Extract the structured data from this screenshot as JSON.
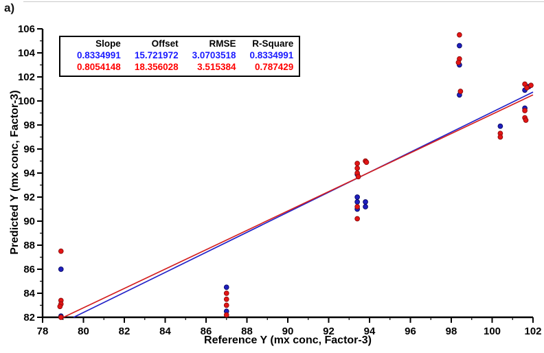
{
  "figure_label": "a)",
  "chart_data": {
    "type": "scatter",
    "title": "",
    "xlabel": "Reference Y (mx conc, Factor-3)",
    "ylabel": "Predicted Y (mx conc, Factor-3)",
    "xlim": [
      78,
      102
    ],
    "ylim": [
      82,
      106
    ],
    "xticks": [
      78,
      80,
      82,
      84,
      86,
      88,
      90,
      92,
      94,
      96,
      98,
      100,
      102
    ],
    "yticks": [
      82,
      84,
      86,
      88,
      90,
      92,
      94,
      96,
      98,
      100,
      102,
      104,
      106
    ],
    "grid": false,
    "legend_position": "top-left",
    "legend_table": {
      "headers": [
        "Slope",
        "Offset",
        "RMSE",
        "R-Square"
      ],
      "rows": [
        {
          "name": "blue-series",
          "color": "#1a1aff",
          "values": [
            "0.8334991",
            "15.721972",
            "3.0703518",
            "0.8334991"
          ]
        },
        {
          "name": "red-series",
          "color": "#ff0000",
          "values": [
            "0.8054148",
            "18.356028",
            "3.515384",
            "0.787429"
          ]
        }
      ]
    },
    "series": [
      {
        "name": "blue-series",
        "color": "#1f1fbe",
        "stroke": "#060660",
        "line_color": "#2323c8",
        "fit": {
          "slope": 0.8334991,
          "offset": 15.721972
        },
        "points": [
          [
            78.9,
            86.0
          ],
          [
            78.9,
            82.1
          ],
          [
            87.0,
            84.5
          ],
          [
            87.0,
            82.5
          ],
          [
            93.4,
            93.9
          ],
          [
            93.4,
            92.0
          ],
          [
            93.4,
            91.6
          ],
          [
            93.4,
            91.0
          ],
          [
            93.8,
            91.6
          ],
          [
            93.8,
            91.2
          ],
          [
            98.4,
            104.6
          ],
          [
            98.4,
            103.0
          ],
          [
            98.4,
            100.5
          ],
          [
            100.4,
            97.9
          ],
          [
            101.6,
            100.9
          ],
          [
            101.6,
            99.4
          ],
          [
            101.8,
            101.2
          ]
        ]
      },
      {
        "name": "red-series",
        "color": "#e31515",
        "stroke": "#8a0b0b",
        "line_color": "#d42020",
        "fit": {
          "slope": 0.8054148,
          "offset": 18.356028
        },
        "points": [
          [
            78.9,
            87.5
          ],
          [
            78.9,
            83.4
          ],
          [
            78.9,
            83.1
          ],
          [
            78.85,
            82.9
          ],
          [
            78.9,
            82.0
          ],
          [
            87.0,
            84.0
          ],
          [
            87.0,
            83.5
          ],
          [
            87.0,
            83.0
          ],
          [
            87.0,
            82.2
          ],
          [
            93.4,
            94.8
          ],
          [
            93.4,
            94.4
          ],
          [
            93.4,
            94.0
          ],
          [
            93.45,
            93.7
          ],
          [
            93.4,
            91.2
          ],
          [
            93.4,
            90.2
          ],
          [
            93.8,
            95.0
          ],
          [
            93.85,
            94.9
          ],
          [
            98.4,
            105.5
          ],
          [
            98.4,
            103.5
          ],
          [
            98.35,
            103.2
          ],
          [
            98.45,
            100.8
          ],
          [
            100.4,
            97.3
          ],
          [
            100.4,
            97.0
          ],
          [
            101.6,
            101.4
          ],
          [
            101.7,
            101.1
          ],
          [
            101.9,
            101.3
          ],
          [
            101.6,
            99.2
          ],
          [
            101.6,
            98.6
          ],
          [
            101.65,
            98.4
          ]
        ]
      }
    ]
  }
}
